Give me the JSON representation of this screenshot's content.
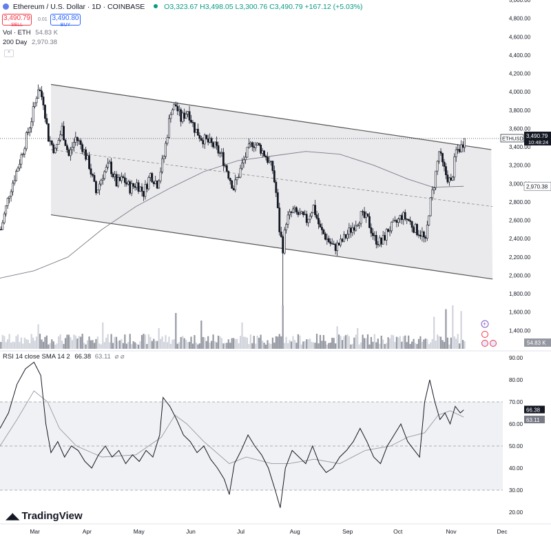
{
  "header": {
    "title": "Ethereum / U.S. Dollar · 1D · COINBASE",
    "ohlc": "O3,323.67 H3,498.05 L3,300.76 C3,490.79 +167.12 (+5.03%)",
    "sell_price": "3,490.79",
    "sell_label": "SELL",
    "spread": "0.01",
    "buy_price": "3,490.80",
    "buy_label": "BUY",
    "vol_label": "Vol · ETH",
    "vol_value": "54.83 K",
    "ma_label": "200 Day",
    "ma_value": "2,970.38",
    "rsi_label": "RSI 14 close SMA 14 2",
    "rsi_value": "66.38",
    "rsi_sma_value": "63.11"
  },
  "brand": {
    "name": "TradingView"
  },
  "chart_data": [
    {
      "type": "candlestick",
      "symbol": "ETHUSD",
      "ylim": [
        1200,
        5000
      ],
      "y_ticks": [
        "5,000.00",
        "4,800.00",
        "4,600.00",
        "4,400.00",
        "4,200.00",
        "4,000.00",
        "3,800.00",
        "3,600.00",
        "3,400.00",
        "3,200.00",
        "3,000.00",
        "2,800.00",
        "2,600.00",
        "2,400.00",
        "2,200.00",
        "2,000.00",
        "1,800.00",
        "1,600.00",
        "1,400.00"
      ],
      "x_ticks": [
        "Mar",
        "Apr",
        "May",
        "Jun",
        "Jul",
        "Aug",
        "Sep",
        "Oct",
        "Nov",
        "Dec"
      ],
      "price_path": [
        [
          0,
          2500
        ],
        [
          5,
          2900
        ],
        [
          12,
          3300
        ],
        [
          18,
          3700
        ],
        [
          22,
          4050
        ],
        [
          25,
          3900
        ],
        [
          28,
          3500
        ],
        [
          32,
          3350
        ],
        [
          36,
          3600
        ],
        [
          40,
          3300
        ],
        [
          44,
          3500
        ],
        [
          48,
          3400
        ],
        [
          52,
          3200
        ],
        [
          56,
          2900
        ],
        [
          60,
          3100
        ],
        [
          64,
          3200
        ],
        [
          68,
          3000
        ],
        [
          72,
          3050
        ],
        [
          76,
          2950
        ],
        [
          80,
          3000
        ],
        [
          84,
          2900
        ],
        [
          88,
          3100
        ],
        [
          92,
          3000
        ],
        [
          96,
          3300
        ],
        [
          100,
          3800
        ],
        [
          103,
          3850
        ],
        [
          106,
          3700
        ],
        [
          110,
          3800
        ],
        [
          114,
          3600
        ],
        [
          118,
          3500
        ],
        [
          122,
          3450
        ],
        [
          126,
          3400
        ],
        [
          130,
          3300
        ],
        [
          134,
          3100
        ],
        [
          137,
          2950
        ],
        [
          140,
          3100
        ],
        [
          144,
          3300
        ],
        [
          148,
          3450
        ],
        [
          152,
          3400
        ],
        [
          156,
          3300
        ],
        [
          160,
          3150
        ],
        [
          162,
          2900
        ],
        [
          164,
          2500
        ],
        [
          166,
          2300
        ],
        [
          168,
          2600
        ],
        [
          172,
          2700
        ],
        [
          176,
          2650
        ],
        [
          180,
          2600
        ],
        [
          184,
          2750
        ],
        [
          188,
          2500
        ],
        [
          192,
          2400
        ],
        [
          196,
          2300
        ],
        [
          200,
          2350
        ],
        [
          204,
          2450
        ],
        [
          208,
          2550
        ],
        [
          212,
          2650
        ],
        [
          216,
          2600
        ],
        [
          220,
          2400
        ],
        [
          224,
          2350
        ],
        [
          228,
          2500
        ],
        [
          232,
          2550
        ],
        [
          236,
          2650
        ],
        [
          240,
          2600
        ],
        [
          244,
          2500
        ],
        [
          248,
          2450
        ],
        [
          250,
          2350
        ],
        [
          252,
          2700
        ],
        [
          255,
          3000
        ],
        [
          258,
          3350
        ],
        [
          260,
          3200
        ],
        [
          262,
          3100
        ],
        [
          265,
          3000
        ],
        [
          268,
          3350
        ],
        [
          271,
          3400
        ],
        [
          273,
          3490.79
        ]
      ],
      "ma200_path": [
        [
          0,
          1970
        ],
        [
          20,
          2050
        ],
        [
          40,
          2200
        ],
        [
          60,
          2500
        ],
        [
          80,
          2750
        ],
        [
          100,
          2950
        ],
        [
          120,
          3130
        ],
        [
          140,
          3250
        ],
        [
          160,
          3300
        ],
        [
          180,
          3350
        ],
        [
          200,
          3320
        ],
        [
          220,
          3200
        ],
        [
          240,
          3050
        ],
        [
          255,
          2960
        ],
        [
          273,
          2970.38
        ]
      ],
      "channel_upper": [
        [
          30,
          4080
        ],
        [
          273,
          3430
        ]
      ],
      "channel_lower": [
        [
          30,
          2660
        ],
        [
          290,
          1960
        ]
      ],
      "channel_mid": [
        [
          30,
          3370
        ],
        [
          290,
          2750
        ]
      ],
      "last_price_label": "3,490.79",
      "last_price_symbol": "ETHUSD",
      "countdown": "10:48:24",
      "ma200_label": "2,970.38",
      "flash_crash_low": 1300,
      "volume": {
        "label": "54.83 K",
        "y_ticks": [
          "1,400.00"
        ],
        "spikes": [
          [
            22,
            0.5
          ],
          [
            60,
            0.55
          ],
          [
            93,
            0.4
          ],
          [
            103,
            0.8
          ],
          [
            118,
            0.6
          ],
          [
            142,
            0.55
          ],
          [
            166,
            1.0
          ],
          [
            198,
            0.45
          ],
          [
            210,
            0.4
          ],
          [
            255,
            0.7
          ],
          [
            262,
            0.9
          ],
          [
            266,
            1.0
          ],
          [
            271,
            0.85
          ]
        ]
      }
    },
    {
      "type": "line",
      "name": "RSI",
      "ylim": [
        15,
        95
      ],
      "y_ticks": [
        "90.00",
        "80.00",
        "70.00",
        "60.00",
        "50.00",
        "40.00",
        "30.00",
        "20.00"
      ],
      "band": [
        30,
        70
      ],
      "midline": 50,
      "rsi_path": [
        [
          0,
          58
        ],
        [
          5,
          65
        ],
        [
          10,
          78
        ],
        [
          15,
          85
        ],
        [
          20,
          88
        ],
        [
          24,
          82
        ],
        [
          27,
          60
        ],
        [
          30,
          47
        ],
        [
          34,
          52
        ],
        [
          38,
          45
        ],
        [
          42,
          50
        ],
        [
          46,
          48
        ],
        [
          50,
          43
        ],
        [
          54,
          40
        ],
        [
          58,
          46
        ],
        [
          62,
          50
        ],
        [
          66,
          45
        ],
        [
          70,
          48
        ],
        [
          74,
          42
        ],
        [
          78,
          46
        ],
        [
          82,
          43
        ],
        [
          86,
          48
        ],
        [
          90,
          45
        ],
        [
          94,
          55
        ],
        [
          96,
          72
        ],
        [
          98,
          70
        ],
        [
          100,
          68
        ],
        [
          104,
          62
        ],
        [
          108,
          55
        ],
        [
          112,
          52
        ],
        [
          116,
          47
        ],
        [
          120,
          50
        ],
        [
          124,
          44
        ],
        [
          128,
          40
        ],
        [
          132,
          35
        ],
        [
          135,
          28
        ],
        [
          138,
          42
        ],
        [
          142,
          48
        ],
        [
          146,
          55
        ],
        [
          150,
          50
        ],
        [
          154,
          46
        ],
        [
          158,
          40
        ],
        [
          162,
          30
        ],
        [
          165,
          22
        ],
        [
          168,
          40
        ],
        [
          172,
          48
        ],
        [
          176,
          45
        ],
        [
          180,
          42
        ],
        [
          184,
          50
        ],
        [
          188,
          42
        ],
        [
          192,
          38
        ],
        [
          196,
          40
        ],
        [
          200,
          45
        ],
        [
          204,
          48
        ],
        [
          208,
          52
        ],
        [
          212,
          58
        ],
        [
          216,
          52
        ],
        [
          220,
          45
        ],
        [
          224,
          42
        ],
        [
          228,
          50
        ],
        [
          232,
          55
        ],
        [
          236,
          60
        ],
        [
          240,
          52
        ],
        [
          244,
          48
        ],
        [
          247,
          45
        ],
        [
          250,
          70
        ],
        [
          253,
          80
        ],
        [
          256,
          70
        ],
        [
          259,
          62
        ],
        [
          262,
          65
        ],
        [
          265,
          60
        ],
        [
          268,
          68
        ],
        [
          271,
          65
        ],
        [
          273,
          66.38
        ]
      ],
      "sma_path": [
        [
          0,
          50
        ],
        [
          10,
          62
        ],
        [
          20,
          75
        ],
        [
          28,
          70
        ],
        [
          35,
          58
        ],
        [
          45,
          50
        ],
        [
          60,
          45
        ],
        [
          80,
          46
        ],
        [
          95,
          54
        ],
        [
          103,
          64
        ],
        [
          110,
          60
        ],
        [
          120,
          52
        ],
        [
          135,
          42
        ],
        [
          145,
          45
        ],
        [
          160,
          42
        ],
        [
          170,
          42
        ],
        [
          185,
          44
        ],
        [
          200,
          42
        ],
        [
          215,
          48
        ],
        [
          230,
          50
        ],
        [
          240,
          54
        ],
        [
          250,
          56
        ],
        [
          258,
          64
        ],
        [
          265,
          66
        ],
        [
          273,
          63.11
        ]
      ],
      "value_label": "66.38",
      "sma_label": "63.11"
    }
  ],
  "colors": {
    "up": "#089981",
    "down": "#f23645",
    "accent": "#2962ff",
    "candle": "#131722",
    "channel_fill": "#e8e8eb",
    "line": "#131722"
  },
  "icons": [
    "eth-logo-icon",
    "status-dot-icon",
    "plus-circle-icon",
    "lightning-icon",
    "us-flag-icon"
  ]
}
